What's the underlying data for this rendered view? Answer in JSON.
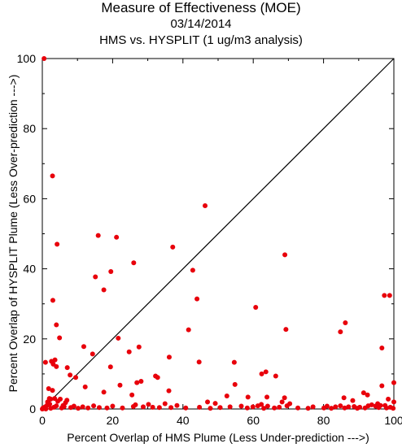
{
  "chart_data": {
    "type": "scatter",
    "title": "Measure of Effectiveness (MOE)",
    "date": "03/14/2014",
    "subtitle": "HMS vs. HYSPLIT  (1 ug/m3 analysis)",
    "xlabel": "Percent Overlap of HMS Plume (Less Under-prediction --->)",
    "ylabel": "Percent Overlap of HYSPLIT Plume (Less Over-prediction --->)",
    "xlim": [
      0,
      100
    ],
    "ylim": [
      0,
      100
    ],
    "xticks": [
      0,
      20,
      40,
      60,
      80,
      100
    ],
    "yticks": [
      0,
      20,
      40,
      60,
      80,
      100
    ],
    "diagonal": [
      [
        0,
        0
      ],
      [
        100,
        100
      ]
    ],
    "grid": false,
    "colors": {
      "points": "#e8000b",
      "axes": "#000000",
      "diagonal": "#000000"
    },
    "points": [
      [
        0.5,
        100
      ],
      [
        2.9,
        66.5
      ],
      [
        46.3,
        58.0
      ],
      [
        15.9,
        49.5
      ],
      [
        21.1,
        49.0
      ],
      [
        4.2,
        47.0
      ],
      [
        37.1,
        46.2
      ],
      [
        69.0,
        44.0
      ],
      [
        26.0,
        41.7
      ],
      [
        42.8,
        39.6
      ],
      [
        15.1,
        37.7
      ],
      [
        19.5,
        39.2
      ],
      [
        17.5,
        34.0
      ],
      [
        44.0,
        31.4
      ],
      [
        3.0,
        31.0
      ],
      [
        60.7,
        29.0
      ],
      [
        86.2,
        24.6
      ],
      [
        4.0,
        24.0
      ],
      [
        69.3,
        22.7
      ],
      [
        84.8,
        22.0
      ],
      [
        41.6,
        22.6
      ],
      [
        4.9,
        20.3
      ],
      [
        21.6,
        20.2
      ],
      [
        27.5,
        17.7
      ],
      [
        96.6,
        17.4
      ],
      [
        11.8,
        17.8
      ],
      [
        97.3,
        32.4
      ],
      [
        98.8,
        32.4
      ],
      [
        24.7,
        16.3
      ],
      [
        14.3,
        15.7
      ],
      [
        36.1,
        14.8
      ],
      [
        3.6,
        14.0
      ],
      [
        2.6,
        13.6
      ],
      [
        3.1,
        12.8
      ],
      [
        0.9,
        13.3
      ],
      [
        44.6,
        13.4
      ],
      [
        54.6,
        13.3
      ],
      [
        7.1,
        11.8
      ],
      [
        19.4,
        12.0
      ],
      [
        4.0,
        12.1
      ],
      [
        63.6,
        10.6
      ],
      [
        62.4,
        10.0
      ],
      [
        66.4,
        9.4
      ],
      [
        9.5,
        9.0
      ],
      [
        7.9,
        9.7
      ],
      [
        32.2,
        9.4
      ],
      [
        32.8,
        9.0
      ],
      [
        28.1,
        7.9
      ],
      [
        26.9,
        7.5
      ],
      [
        54.8,
        7.0
      ],
      [
        22.1,
        6.8
      ],
      [
        96.6,
        6.6
      ],
      [
        100.0,
        7.5
      ],
      [
        1.8,
        5.8
      ],
      [
        2.9,
        5.3
      ],
      [
        3.5,
        3.0
      ],
      [
        5.1,
        2.8
      ],
      [
        7.0,
        2.5
      ],
      [
        4.4,
        2.2
      ],
      [
        1.5,
        2.0
      ],
      [
        2.0,
        3.0
      ],
      [
        12.2,
        6.3
      ],
      [
        17.5,
        4.8
      ],
      [
        25.5,
        4.0
      ],
      [
        36.0,
        5.2
      ],
      [
        52.5,
        3.7
      ],
      [
        58.5,
        3.4
      ],
      [
        63.9,
        3.4
      ],
      [
        68.2,
        2.0
      ],
      [
        68.9,
        3.2
      ],
      [
        70.4,
        1.5
      ],
      [
        85.8,
        3.2
      ],
      [
        88.3,
        2.4
      ],
      [
        91.4,
        4.6
      ],
      [
        92.5,
        4.0
      ],
      [
        95.4,
        1.5
      ],
      [
        98.4,
        2.8
      ],
      [
        100.0,
        2.0
      ],
      [
        47.0,
        2.0
      ],
      [
        49.2,
        1.6
      ],
      [
        56.6,
        0.8
      ],
      [
        61.3,
        0.9
      ],
      [
        62.3,
        1.3
      ],
      [
        64.1,
        0.8
      ],
      [
        66.0,
        0.3
      ],
      [
        72.7,
        0.3
      ],
      [
        77.0,
        0.6
      ],
      [
        81.0,
        0.8
      ],
      [
        83.4,
        0.6
      ],
      [
        84.8,
        0.9
      ],
      [
        87.1,
        0.6
      ],
      [
        88.7,
        0.7
      ],
      [
        90.3,
        0.5
      ],
      [
        92.7,
        0.9
      ],
      [
        93.7,
        1.2
      ],
      [
        94.8,
        0.8
      ],
      [
        96.2,
        1.0
      ],
      [
        97.5,
        1.0
      ],
      [
        99.0,
        0.5
      ],
      [
        0.2,
        0.3
      ],
      [
        0.8,
        0.6
      ],
      [
        1.3,
        1.0
      ],
      [
        2.4,
        0.2
      ],
      [
        3.3,
        0.5
      ],
      [
        4.0,
        0.9
      ],
      [
        5.5,
        0.3
      ],
      [
        6.2,
        0.7
      ],
      [
        8.1,
        0.4
      ],
      [
        9.0,
        0.8
      ],
      [
        10.2,
        0.2
      ],
      [
        11.5,
        0.6
      ],
      [
        13.0,
        0.3
      ],
      [
        14.6,
        0.9
      ],
      [
        16.2,
        0.4
      ],
      [
        18.4,
        0.3
      ],
      [
        20.0,
        0.8
      ],
      [
        22.8,
        0.3
      ],
      [
        25.9,
        0.7
      ],
      [
        26.5,
        1.2
      ],
      [
        28.7,
        0.6
      ],
      [
        30.2,
        1.3
      ],
      [
        31.4,
        0.5
      ],
      [
        33.3,
        0.4
      ],
      [
        34.9,
        1.5
      ],
      [
        36.6,
        0.4
      ],
      [
        38.3,
        1.0
      ],
      [
        40.8,
        0.3
      ],
      [
        44.7,
        0.5
      ],
      [
        47.8,
        0.2
      ],
      [
        50.6,
        0.4
      ],
      [
        53.4,
        0.6
      ],
      [
        58.3,
        0.3
      ],
      [
        59.9,
        0.6
      ],
      [
        63.0,
        0.2
      ],
      [
        67.4,
        0.5
      ],
      [
        69.6,
        0.9
      ],
      [
        75.6,
        0.2
      ],
      [
        80.1,
        0.3
      ],
      [
        82.2,
        0.2
      ],
      [
        86.0,
        0.3
      ],
      [
        89.6,
        0.2
      ],
      [
        91.8,
        0.3
      ],
      [
        95.7,
        0.4
      ],
      [
        97.9,
        0.3
      ],
      [
        99.8,
        0.2
      ],
      [
        0.0,
        0.0
      ],
      [
        1.0,
        0.0
      ],
      [
        2.1,
        1.4
      ],
      [
        2.4,
        2.8
      ],
      [
        5.9,
        1.0
      ],
      [
        6.6,
        1.8
      ]
    ]
  }
}
